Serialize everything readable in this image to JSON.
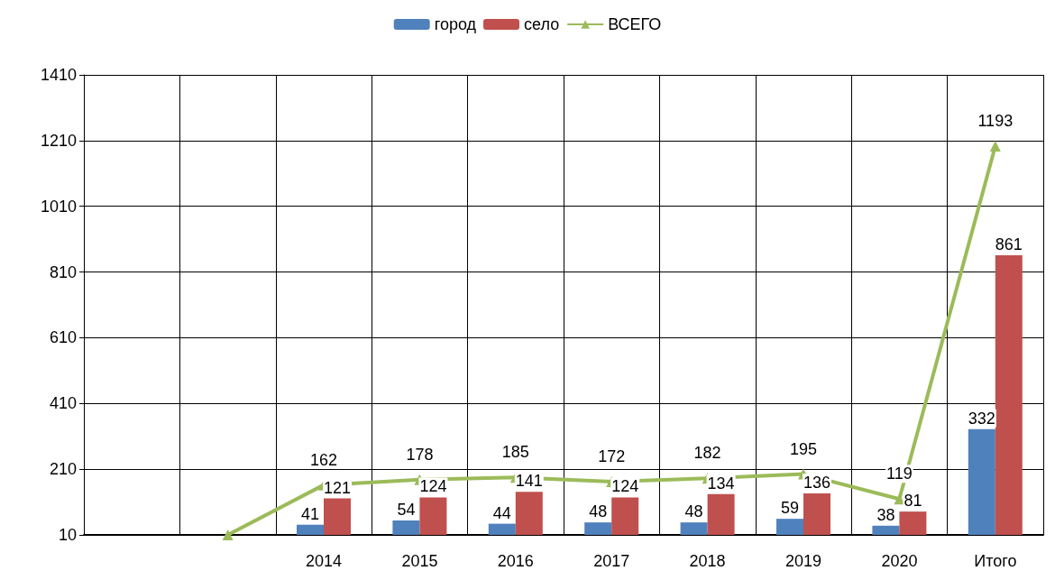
{
  "chart_data": {
    "type": "bar",
    "categories": [
      null,
      null,
      "2014",
      "2015",
      "2016",
      "2017",
      "2018",
      "2019",
      "2020",
      "Итого"
    ],
    "series": [
      {
        "name": "город",
        "color": "#4f81bd",
        "values": [
          null,
          null,
          41,
          54,
          44,
          48,
          48,
          59,
          38,
          332
        ]
      },
      {
        "name": "село",
        "color": "#c0504d",
        "values": [
          null,
          null,
          121,
          124,
          141,
          124,
          134,
          136,
          81,
          861
        ]
      },
      {
        "name": "ВСЕГО",
        "type": "line",
        "color": "#9bbb59",
        "marker": "triangle",
        "values": [
          null,
          10,
          162,
          178,
          185,
          172,
          182,
          195,
          119,
          1193
        ],
        "value_labels": [
          null,
          null,
          "162",
          "178",
          "185",
          "172",
          "182",
          "195",
          "119",
          "1193"
        ]
      }
    ],
    "data_labels": true,
    "ylim": [
      10,
      1410
    ],
    "yticks": [
      10,
      210,
      410,
      610,
      810,
      1010,
      1210,
      1410
    ],
    "grid": true,
    "legend": "top"
  }
}
